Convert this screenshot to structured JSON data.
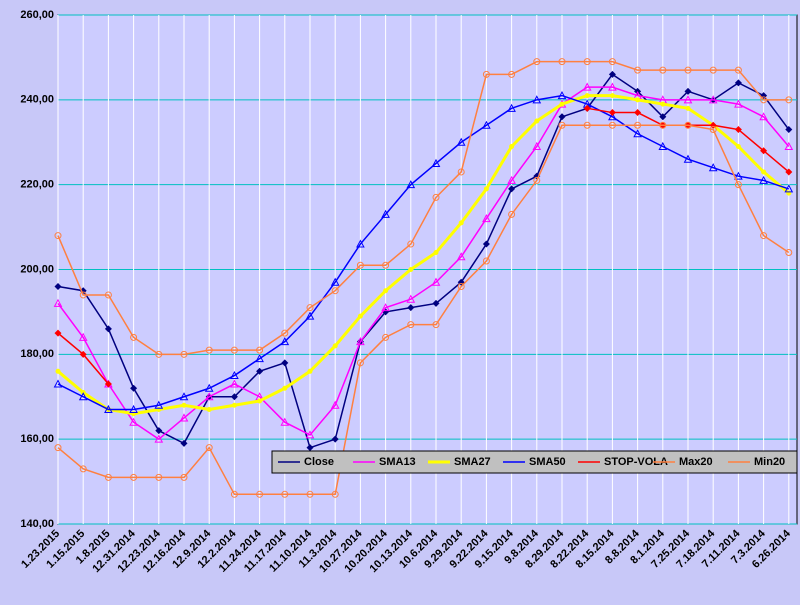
{
  "chart_data": {
    "type": "line",
    "categories": [
      "1.23.2015",
      "1.15.2015",
      "1.8.2015",
      "12.31.2014",
      "12.23.2014",
      "12.16.2014",
      "12.9.2014",
      "12.2.2014",
      "11.24.2014",
      "11.17.2014",
      "11.10.2014",
      "11.3.2014",
      "10.27.2014",
      "10.20.2014",
      "10.13.2014",
      "10.6.2014",
      "9.29.2014",
      "9.22.2014",
      "9.15.2014",
      "9.8.2014",
      "8.29.2014",
      "8.22.2014",
      "8.15.2014",
      "8.8.2014",
      "8.1.2014",
      "7.25.2014",
      "7.18.2014",
      "7.11.2014",
      "7.3.2014",
      "6.26.2014"
    ],
    "ylim": [
      140,
      260
    ],
    "yticks": [
      {
        "value": 140,
        "label": "140,00"
      },
      {
        "value": 160,
        "label": "160,00"
      },
      {
        "value": 180,
        "label": "180,00"
      },
      {
        "value": 200,
        "label": "200,00"
      },
      {
        "value": 220,
        "label": "220,00"
      },
      {
        "value": 240,
        "label": "240,00"
      },
      {
        "value": 260,
        "label": "260,00"
      }
    ],
    "grid": true,
    "legend": "bottom-right",
    "series": [
      {
        "name": "Close",
        "color": "#000080",
        "marker": "diamond",
        "values": [
          196,
          195,
          186,
          172,
          162,
          159,
          170,
          170,
          176,
          178,
          158,
          160,
          183,
          190,
          191,
          192,
          197,
          206,
          219,
          222,
          236,
          238,
          246,
          242,
          236,
          242,
          240,
          244,
          241,
          233
        ]
      },
      {
        "name": "SMA13",
        "color": "#ff00ff",
        "marker": "triangle",
        "values": [
          192,
          184,
          173,
          164,
          160,
          165,
          170,
          173,
          170,
          164,
          161,
          168,
          183,
          191,
          193,
          197,
          203,
          212,
          221,
          229,
          239,
          243,
          243,
          241,
          240,
          240,
          240,
          239,
          236,
          229
        ]
      },
      {
        "name": "SMA27",
        "color": "#ffff00",
        "marker": "thick",
        "values": [
          176,
          171,
          167,
          166,
          167,
          168,
          167,
          168,
          169,
          172,
          176,
          182,
          189,
          195,
          200,
          204,
          211,
          219,
          229,
          235,
          239,
          241,
          241,
          240,
          239,
          238,
          234,
          229,
          223,
          218
        ]
      },
      {
        "name": "SMA50",
        "color": "#0000ff",
        "marker": "triangle",
        "values": [
          173,
          170,
          167,
          167,
          168,
          170,
          172,
          175,
          179,
          183,
          189,
          197,
          206,
          213,
          220,
          225,
          230,
          234,
          238,
          240,
          241,
          239,
          236,
          232,
          229,
          226,
          224,
          222,
          221,
          219
        ]
      },
      {
        "name": "STOP-VOLA",
        "color": "#ff0000",
        "marker": "diamond",
        "values": [
          185,
          180,
          173,
          null,
          null,
          null,
          null,
          null,
          null,
          null,
          null,
          null,
          null,
          null,
          null,
          null,
          null,
          null,
          null,
          null,
          null,
          238,
          237,
          237,
          234,
          234,
          234,
          233,
          228,
          223
        ]
      },
      {
        "name": "Max20",
        "color": "#ff8040",
        "marker": "circle",
        "values": [
          208,
          194,
          194,
          184,
          180,
          180,
          181,
          181,
          181,
          185,
          191,
          195,
          201,
          201,
          206,
          217,
          223,
          246,
          246,
          249,
          249,
          249,
          249,
          247,
          247,
          247,
          247,
          247,
          240,
          240
        ]
      },
      {
        "name": "Min20",
        "color": "#ff8040",
        "marker": "circle",
        "values": [
          158,
          153,
          151,
          151,
          151,
          151,
          158,
          147,
          147,
          147,
          147,
          147,
          178,
          184,
          187,
          187,
          196,
          202,
          213,
          221,
          234,
          234,
          234,
          234,
          234,
          234,
          233,
          220,
          208,
          204
        ]
      }
    ]
  }
}
